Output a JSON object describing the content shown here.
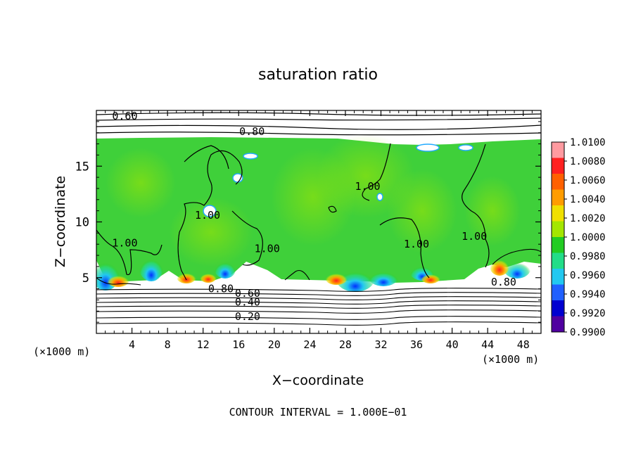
{
  "chart_data": {
    "type": "heatmap",
    "title": "saturation ratio",
    "xlabel": "X−coordinate",
    "ylabel": "Z−coordinate",
    "x_unit": "(×1000 m)",
    "y_unit": "(×1000 m)",
    "xlim": [
      0,
      50
    ],
    "ylim": [
      0,
      20
    ],
    "x_ticks": [
      4,
      8,
      12,
      16,
      20,
      24,
      28,
      32,
      36,
      40,
      44,
      48
    ],
    "x_tick_labels": [
      "4",
      "8",
      "12",
      "16",
      "20",
      "24",
      "28",
      "32",
      "36",
      "40",
      "44",
      "48"
    ],
    "y_ticks": [
      5,
      10,
      15
    ],
    "y_tick_labels": [
      "5",
      "10",
      "15"
    ],
    "grid": false,
    "footer": "CONTOUR INTERVAL = 1.000E−01",
    "colorbar": {
      "min": 0.99,
      "max": 1.01,
      "tick_labels": [
        "1.0100",
        "1.0080",
        "1.0060",
        "1.0040",
        "1.0020",
        "1.0000",
        "0.9980",
        "0.9960",
        "0.9940",
        "0.9920",
        "0.9900"
      ],
      "colors": [
        "#ff9aa0",
        "#ff2020",
        "#ff6000",
        "#ff9c00",
        "#f0e000",
        "#a4e600",
        "#22cc22",
        "#22dd88",
        "#22c8f0",
        "#2060ff",
        "#0000d0",
        "#5000a0"
      ]
    },
    "contour_interval": 0.1,
    "contour_labels": [
      {
        "text": "0.60",
        "x": 3.2,
        "z": 19.5
      },
      {
        "text": "0.80",
        "x": 17.5,
        "z": 18.1
      },
      {
        "text": "1.00",
        "x": 3.2,
        "z": 8.1
      },
      {
        "text": "1.00",
        "x": 12.5,
        "z": 10.6
      },
      {
        "text": "1.00",
        "x": 19.2,
        "z": 7.6
      },
      {
        "text": "1.00",
        "x": 30.5,
        "z": 13.2
      },
      {
        "text": "1.00",
        "x": 36.0,
        "z": 8.0
      },
      {
        "text": "1.00",
        "x": 42.5,
        "z": 8.7
      },
      {
        "text": "0.80",
        "x": 14.0,
        "z": 4.0
      },
      {
        "text": "0.60",
        "x": 17.0,
        "z": 3.6
      },
      {
        "text": "0.40",
        "x": 17.0,
        "z": 2.8
      },
      {
        "text": "0.20",
        "x": 17.0,
        "z": 1.5
      },
      {
        "text": "0.80",
        "x": 45.8,
        "z": 4.6
      }
    ]
  }
}
